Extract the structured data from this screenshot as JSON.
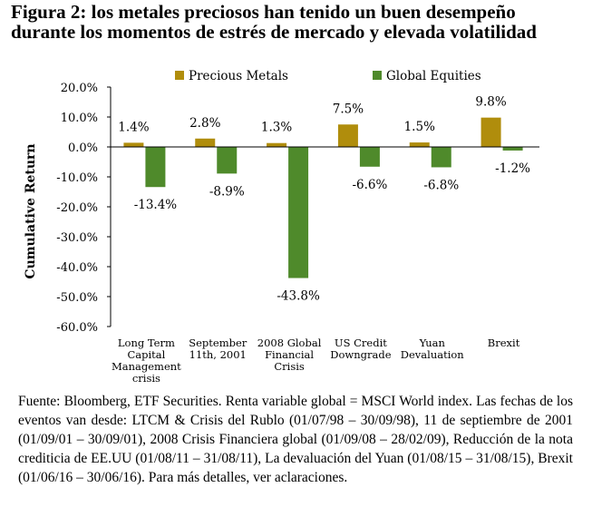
{
  "title": {
    "label": "Figura 2:",
    "text": "los metales preciosos han tenido un buen desempeño durante los momentos de estrés de mercado y elevada volatilidad"
  },
  "chart_data": {
    "type": "bar",
    "ylabel": "Cumulative Return",
    "ylim": [
      -60,
      20
    ],
    "yticks": [
      20,
      10,
      0,
      -10,
      -20,
      -30,
      -40,
      -50,
      -60
    ],
    "ytick_labels": [
      "20.0%",
      "10.0%",
      "0.0%",
      "-10.0%",
      "-20.0%",
      "-30.0%",
      "-40.0%",
      "-50.0%",
      "-60.0%"
    ],
    "categories": [
      [
        "Long Term",
        "Capital",
        "Management",
        "crisis"
      ],
      [
        "September",
        "11th, 2001"
      ],
      [
        "2008 Global",
        "Financial",
        "Crisis"
      ],
      [
        "US Credit",
        "Downgrade"
      ],
      [
        "Yuan",
        "Devaluation"
      ],
      [
        "Brexit"
      ]
    ],
    "legend_position": "top-center",
    "series": [
      {
        "name": "Precious Metals",
        "color": "#B08D0C",
        "values": [
          1.4,
          2.8,
          1.3,
          7.5,
          1.5,
          9.8
        ],
        "labels": [
          "1.4%",
          "2.8%",
          "1.3%",
          "7.5%",
          "1.5%",
          "9.8%"
        ]
      },
      {
        "name": "Global Equities",
        "color": "#4F8A2B",
        "values": [
          -13.4,
          -8.9,
          -43.8,
          -6.6,
          -6.8,
          -1.2
        ],
        "labels": [
          "-13.4%",
          "-8.9%",
          "-43.8%",
          "-6.6%",
          "-6.8%",
          "-1.2%"
        ]
      }
    ]
  },
  "footer": {
    "text": "Fuente: Bloomberg, ETF Securities. Renta variable global = MSCI World index. Las fechas de los eventos van desde: LTCM & Crisis del Rublo (01/07/98 – 30/09/98), 11 de septiembre de 2001 (01/09/01 – 30/09/01), 2008 Crisis Financiera global (01/09/08 – 28/02/09), Reducción de la nota crediticia de EE.UU (01/08/11 – 31/08/11), La devaluación del Yuan (01/08/15 – 31/08/15), Brexit (01/06/16 – 30/06/16). Para más detalles, ver aclaraciones."
  }
}
